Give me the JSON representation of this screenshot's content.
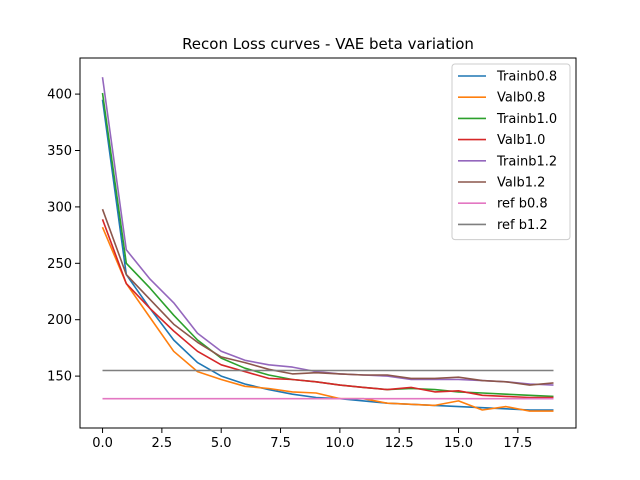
{
  "chart_data": {
    "type": "line",
    "title": "Recon Loss curves - VAE beta variation",
    "xlabel": "",
    "ylabel": "",
    "xlim": [
      -0.95,
      19.95
    ],
    "ylim": [
      104,
      432
    ],
    "xticks": [
      0,
      2.5,
      5,
      7.5,
      10,
      12.5,
      15,
      17.5
    ],
    "xtick_labels": [
      "0.0",
      "2.5",
      "5.0",
      "7.5",
      "10.0",
      "12.5",
      "15.0",
      "17.5"
    ],
    "yticks": [
      150,
      200,
      250,
      300,
      350,
      400
    ],
    "ytick_labels": [
      "150",
      "200",
      "250",
      "300",
      "350",
      "400"
    ],
    "grid": false,
    "legend_position": "top-right",
    "x": [
      0,
      1,
      2,
      3,
      4,
      5,
      6,
      7,
      8,
      9,
      10,
      11,
      12,
      13,
      14,
      15,
      16,
      17,
      18,
      19
    ],
    "series": [
      {
        "name": "Trainb0.8",
        "color": "#1f77b4",
        "values": [
          395,
          240,
          210,
          182,
          162,
          150,
          143,
          138,
          134,
          131,
          130,
          128,
          126,
          125,
          124,
          123,
          122,
          121,
          120,
          120
        ]
      },
      {
        "name": "Valb0.8",
        "color": "#ff7f0e",
        "values": [
          282,
          232,
          202,
          172,
          154,
          147,
          141,
          139,
          136,
          135,
          130,
          130,
          126,
          125,
          124,
          128,
          120,
          123,
          119,
          119
        ]
      },
      {
        "name": "Trainb1.0",
        "color": "#2ca02c",
        "values": [
          401,
          250,
          228,
          204,
          182,
          166,
          157,
          151,
          147,
          145,
          142,
          140,
          138,
          139,
          138,
          136,
          135,
          134,
          133,
          132
        ]
      },
      {
        "name": "Valb1.0",
        "color": "#d62728",
        "values": [
          289,
          232,
          210,
          190,
          172,
          160,
          154,
          148,
          147,
          145,
          142,
          140,
          138,
          140,
          136,
          137,
          133,
          132,
          131,
          131
        ]
      },
      {
        "name": "Trainb1.2",
        "color": "#9467bd",
        "values": [
          415,
          262,
          236,
          215,
          188,
          172,
          164,
          160,
          158,
          154,
          152,
          151,
          150,
          147,
          147,
          147,
          146,
          145,
          143,
          142
        ]
      },
      {
        "name": "Valb1.2",
        "color": "#8c564b",
        "values": [
          298,
          240,
          218,
          196,
          180,
          167,
          162,
          156,
          152,
          153,
          152,
          151,
          151,
          148,
          148,
          149,
          146,
          145,
          142,
          144
        ]
      },
      {
        "name": "ref b0.8",
        "color": "#e377c2",
        "values": [
          130,
          130,
          130,
          130,
          130,
          130,
          130,
          130,
          130,
          130,
          130,
          130,
          130,
          130,
          130,
          130,
          130,
          130,
          130,
          130
        ]
      },
      {
        "name": "ref b1.2",
        "color": "#7f7f7f",
        "values": [
          155,
          155,
          155,
          155,
          155,
          155,
          155,
          155,
          155,
          155,
          155,
          155,
          155,
          155,
          155,
          155,
          155,
          155,
          155,
          155
        ]
      }
    ]
  }
}
